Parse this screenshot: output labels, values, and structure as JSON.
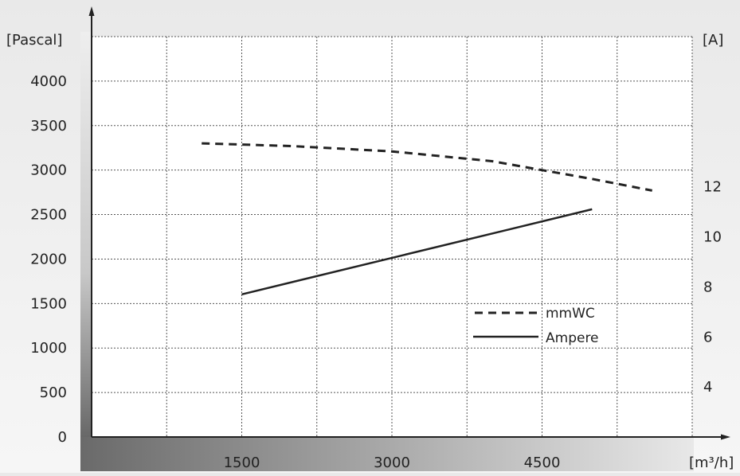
{
  "chart_data": {
    "type": "line",
    "y_left": {
      "label": "[Pascal]",
      "ticks": [
        "4000",
        "3500",
        "3000",
        "2500",
        "2000",
        "1500",
        "1000",
        "500",
        "0"
      ],
      "range": [
        0,
        4500
      ]
    },
    "y_right": {
      "label": "[A]",
      "ticks": [
        "12",
        "10",
        "8",
        "6",
        "4"
      ],
      "range": [
        2,
        18
      ]
    },
    "x": {
      "label": "[m³/h]",
      "ticks": [
        "1500",
        "3000",
        "4500"
      ],
      "range": [
        0,
        6000
      ]
    },
    "grid": true,
    "legend": "inside, lower right",
    "series": [
      {
        "name": "mmWC",
        "axis": "left",
        "style": "dashed",
        "color": "#222222",
        "x": [
          1100,
          2000,
          3000,
          4000,
          4500,
          5000,
          5600
        ],
        "y": [
          3300,
          3270,
          3210,
          3100,
          3000,
          2900,
          2770
        ]
      },
      {
        "name": "Ampere",
        "axis": "right",
        "style": "solid",
        "color": "#222222",
        "x": [
          1500,
          5000
        ],
        "y": [
          7.7,
          11.1
        ]
      }
    ]
  }
}
